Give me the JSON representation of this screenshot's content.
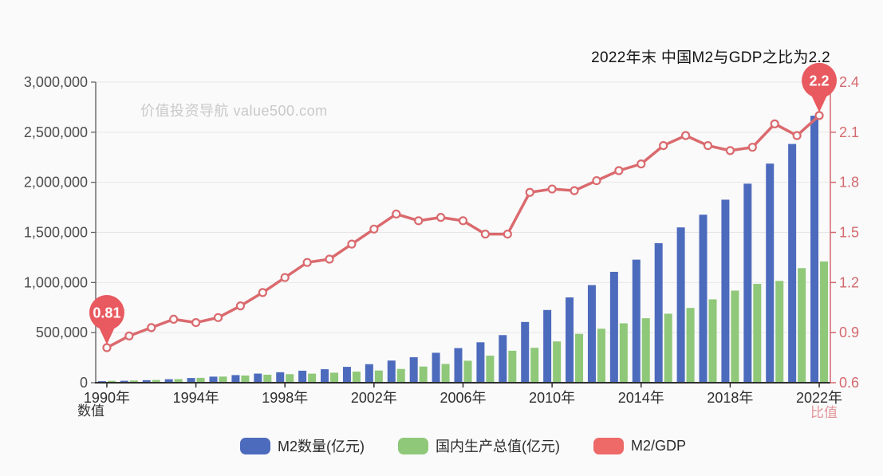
{
  "title": "2022年末 中国M2与GDP之比为2.2",
  "watermark": "价值投资导航 value500.com",
  "axes": {
    "left_name": "数值",
    "right_name": "比值"
  },
  "legend": {
    "items": [
      {
        "label": "M2数量(亿元)",
        "color": "#4d6bbd"
      },
      {
        "label": "国内生产总值(亿元)",
        "color": "#8fc879"
      },
      {
        "label": "M2/GDP",
        "color": "#ee6a68"
      }
    ]
  },
  "colors": {
    "pin": "#e85a60",
    "right_axis": "#d4696e",
    "grid": "#e7e7e7",
    "left_axis": "#666666",
    "bottom_axis": "#2f2f2f",
    "background": "#fafafa"
  },
  "chart_data": {
    "type": "bar",
    "x_years": [
      1990,
      1991,
      1992,
      1993,
      1994,
      1995,
      1996,
      1997,
      1998,
      1999,
      2000,
      2001,
      2002,
      2003,
      2004,
      2005,
      2006,
      2007,
      2008,
      2009,
      2010,
      2011,
      2012,
      2013,
      2014,
      2015,
      2016,
      2017,
      2018,
      2019,
      2020,
      2021,
      2022
    ],
    "x_tick_labels": [
      "1990年",
      "1994年",
      "1998年",
      "2002年",
      "2006年",
      "2010年",
      "2014年",
      "2018年",
      "2022年"
    ],
    "x_tick_every": 4,
    "series": [
      {
        "name": "M2数量(亿元)",
        "type": "bar",
        "axis": "left",
        "color": "#4d6bbd",
        "values": [
          15293,
          19350,
          25402,
          34880,
          46924,
          60751,
          76095,
          90995,
          104499,
          119898,
          134610,
          158302,
          185007,
          221223,
          254107,
          298756,
          345604,
          403442,
          475167,
          606225,
          725852,
          851591,
          974149,
          1106525,
          1228375,
          1392278,
          1550067,
          1676768,
          1826744,
          1986489,
          2186795,
          2382900,
          2664320
        ]
      },
      {
        "name": "国内生产总值(亿元)",
        "type": "bar",
        "axis": "left",
        "color": "#8fc879",
        "values": [
          18873,
          22006,
          27195,
          35674,
          48638,
          61340,
          71814,
          79715,
          85196,
          90564,
          100280,
          110863,
          121717,
          137422,
          161840,
          187319,
          219439,
          270092,
          319245,
          348518,
          412119,
          487940,
          538580,
          592963,
          643563,
          688858,
          746395,
          832036,
          919281,
          986515,
          1015986,
          1143670,
          1210207
        ]
      },
      {
        "name": "M2/GDP",
        "type": "line",
        "axis": "right",
        "color": "#da6a6e",
        "values": [
          0.81,
          0.88,
          0.93,
          0.98,
          0.96,
          0.99,
          1.06,
          1.14,
          1.23,
          1.32,
          1.34,
          1.43,
          1.52,
          1.61,
          1.57,
          1.59,
          1.57,
          1.49,
          1.49,
          1.74,
          1.76,
          1.75,
          1.81,
          1.87,
          1.91,
          2.02,
          2.08,
          2.02,
          1.99,
          2.01,
          2.15,
          2.08,
          2.2
        ]
      }
    ],
    "y_axis_left": {
      "min": 0,
      "max": 3000000,
      "tick_labels": [
        "0",
        "500,000",
        "1,000,000",
        "1,500,000",
        "2,000,000",
        "2,500,000",
        "3,000,000"
      ]
    },
    "y_axis_right": {
      "min": 0.6,
      "max": 2.4,
      "tick_labels": [
        "0.6",
        "0.9",
        "1.2",
        "1.5",
        "1.8",
        "2.1",
        "2.4"
      ]
    },
    "grid": true,
    "legend_position": "bottom",
    "annotations": [
      {
        "year": 1990,
        "series": "M2/GDP",
        "text": "0.81"
      },
      {
        "year": 2022,
        "series": "M2/GDP",
        "text": "2.2"
      }
    ]
  }
}
